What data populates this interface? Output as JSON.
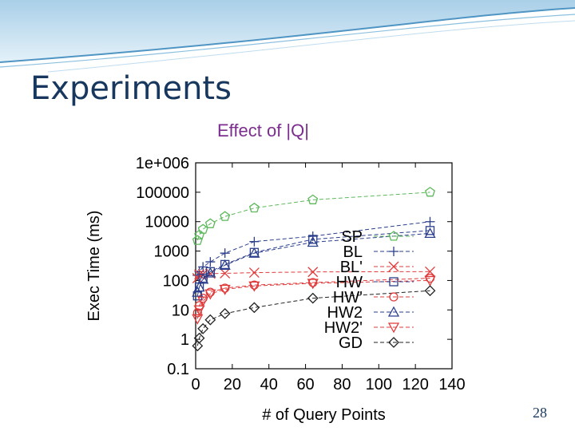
{
  "slide": {
    "title": "Experiments",
    "subtitle": "Effect of |Q|",
    "page_number": "28"
  },
  "chart_data": {
    "type": "line",
    "xlabel": "# of Query Points",
    "ylabel": "Exec Time (ms)",
    "xlim": [
      0,
      140
    ],
    "ylim": [
      0.1,
      1000000
    ],
    "yscale": "log",
    "x_ticks": [
      "0",
      "20",
      "40",
      "60",
      "80",
      "100",
      "120",
      "140"
    ],
    "y_ticks": [
      "0.1",
      "1",
      "10",
      "100",
      "1000",
      "10000",
      "100000",
      "1e+006"
    ],
    "x": [
      1,
      2,
      4,
      8,
      16,
      32,
      64,
      128
    ],
    "legend_position": "right-center",
    "series": [
      {
        "name": "SP",
        "color": "#5db85b",
        "marker": "pentagon",
        "values": [
          2300,
          3500,
          5500,
          8500,
          15000,
          29000,
          55000,
          100000
        ]
      },
      {
        "name": "BL",
        "color": "#2b3f8c",
        "marker": "plus",
        "values": [
          150,
          200,
          290,
          430,
          850,
          2100,
          3200,
          10000
        ]
      },
      {
        "name": "BL'",
        "color": "#e03b3b",
        "marker": "cross",
        "values": [
          120,
          160,
          165,
          170,
          175,
          185,
          195,
          200
        ]
      },
      {
        "name": "HW",
        "color": "#2b3f8c",
        "marker": "square",
        "values": [
          30,
          60,
          120,
          200,
          350,
          900,
          2500,
          5000
        ]
      },
      {
        "name": "HW'",
        "color": "#e03b3b",
        "marker": "circle",
        "values": [
          8,
          14,
          25,
          40,
          55,
          70,
          85,
          120
        ]
      },
      {
        "name": "HW2",
        "color": "#2b3f8c",
        "marker": "triangle-up",
        "values": [
          40,
          60,
          110,
          180,
          330,
          850,
          2000,
          4000
        ]
      },
      {
        "name": "HW2'",
        "color": "#e03b3b",
        "marker": "triangle-down",
        "values": [
          5,
          10,
          20,
          35,
          50,
          65,
          80,
          100
        ]
      },
      {
        "name": "GD",
        "color": "#222222",
        "marker": "diamond",
        "values": [
          0.6,
          1.1,
          2.3,
          4.6,
          7.5,
          12,
          25,
          45
        ]
      }
    ]
  }
}
